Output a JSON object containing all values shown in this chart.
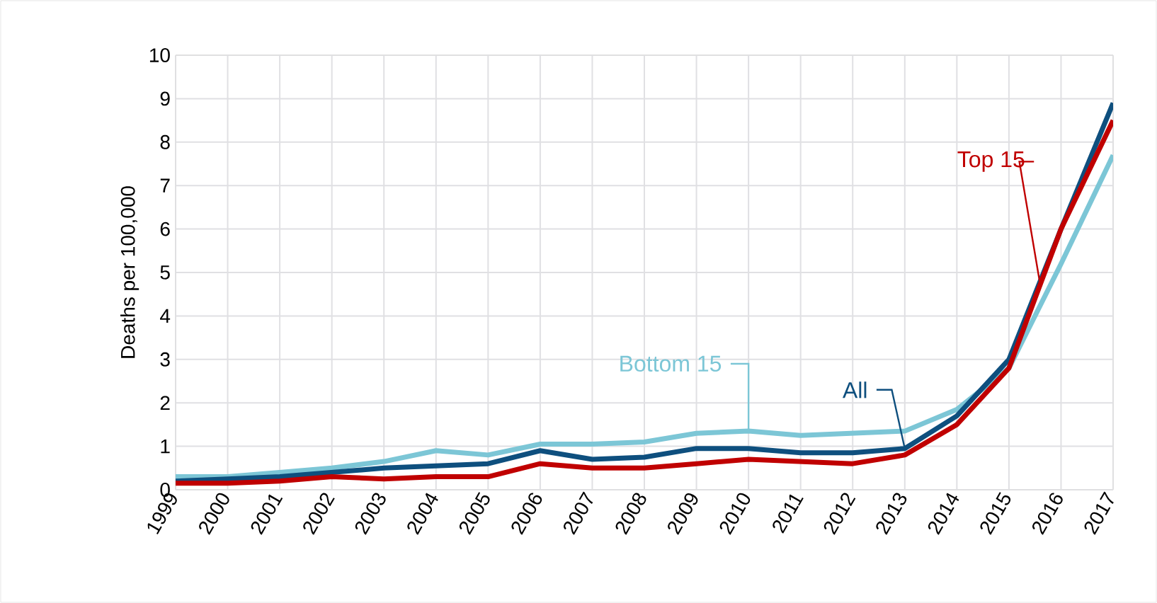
{
  "chart_data": {
    "type": "line",
    "ylabel": "Deaths per 100,000",
    "categories": [
      "1999",
      "2000",
      "2001",
      "2002",
      "2003",
      "2004",
      "2005",
      "2006",
      "2007",
      "2008",
      "2009",
      "2010",
      "2011",
      "2012",
      "2013",
      "2014",
      "2015",
      "2016",
      "2017"
    ],
    "series": [
      {
        "name": "Bottom 15",
        "color": "#7cc6d6",
        "values": [
          0.3,
          0.3,
          0.4,
          0.5,
          0.65,
          0.9,
          0.8,
          1.05,
          1.05,
          1.1,
          1.3,
          1.35,
          1.25,
          1.3,
          1.35,
          1.85,
          2.8,
          5.2,
          7.7
        ]
      },
      {
        "name": "All",
        "color": "#0e4f7e",
        "values": [
          0.2,
          0.25,
          0.3,
          0.4,
          0.5,
          0.55,
          0.6,
          0.9,
          0.7,
          0.75,
          0.95,
          0.95,
          0.85,
          0.85,
          0.95,
          1.7,
          3.0,
          6.0,
          8.9
        ]
      },
      {
        "name": "Top 15",
        "color": "#c00000",
        "values": [
          0.15,
          0.15,
          0.2,
          0.3,
          0.25,
          0.3,
          0.3,
          0.6,
          0.5,
          0.5,
          0.6,
          0.7,
          0.65,
          0.6,
          0.8,
          1.5,
          2.8,
          6.0,
          8.5
        ]
      }
    ],
    "ylim": [
      0,
      10
    ],
    "yticks": [
      0,
      1,
      2,
      3,
      4,
      5,
      6,
      7,
      8,
      9,
      10
    ],
    "grid": true,
    "legend": false,
    "marker": "none",
    "line_style": "solid"
  }
}
